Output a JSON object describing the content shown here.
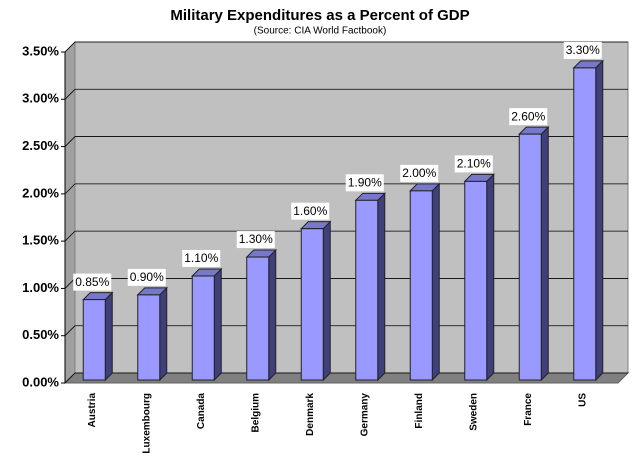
{
  "chart_data": {
    "type": "bar3d",
    "title": "Military Expenditures as a Percent of GDP",
    "subtitle": "(Source: CIA World Factbook)",
    "categories": [
      "Austria",
      "Luxembourg",
      "Canada",
      "Belgium",
      "Denmark",
      "Germany",
      "Finland",
      "Sweden",
      "France",
      "US"
    ],
    "values": [
      0.85,
      0.9,
      1.1,
      1.3,
      1.6,
      1.9,
      2.0,
      2.1,
      2.6,
      3.3
    ],
    "value_labels": [
      "0.85%",
      "0.90%",
      "1.10%",
      "1.30%",
      "1.60%",
      "1.90%",
      "2.00%",
      "2.10%",
      "2.60%",
      "3.30%"
    ],
    "color": "#9999ff",
    "ylim": [
      0,
      3.5
    ],
    "yticks": [
      {
        "value": 0,
        "label": "0.00%"
      },
      {
        "value": 0.5,
        "label": "0.50%"
      },
      {
        "value": 1.0,
        "label": "1.00%"
      },
      {
        "value": 1.5,
        "label": "1.50%"
      },
      {
        "value": 2.0,
        "label": "2.00%"
      },
      {
        "value": 2.5,
        "label": "2.50%"
      },
      {
        "value": 3.0,
        "label": "3.00%"
      },
      {
        "value": 3.5,
        "label": "3.50%"
      }
    ],
    "grid": true
  }
}
